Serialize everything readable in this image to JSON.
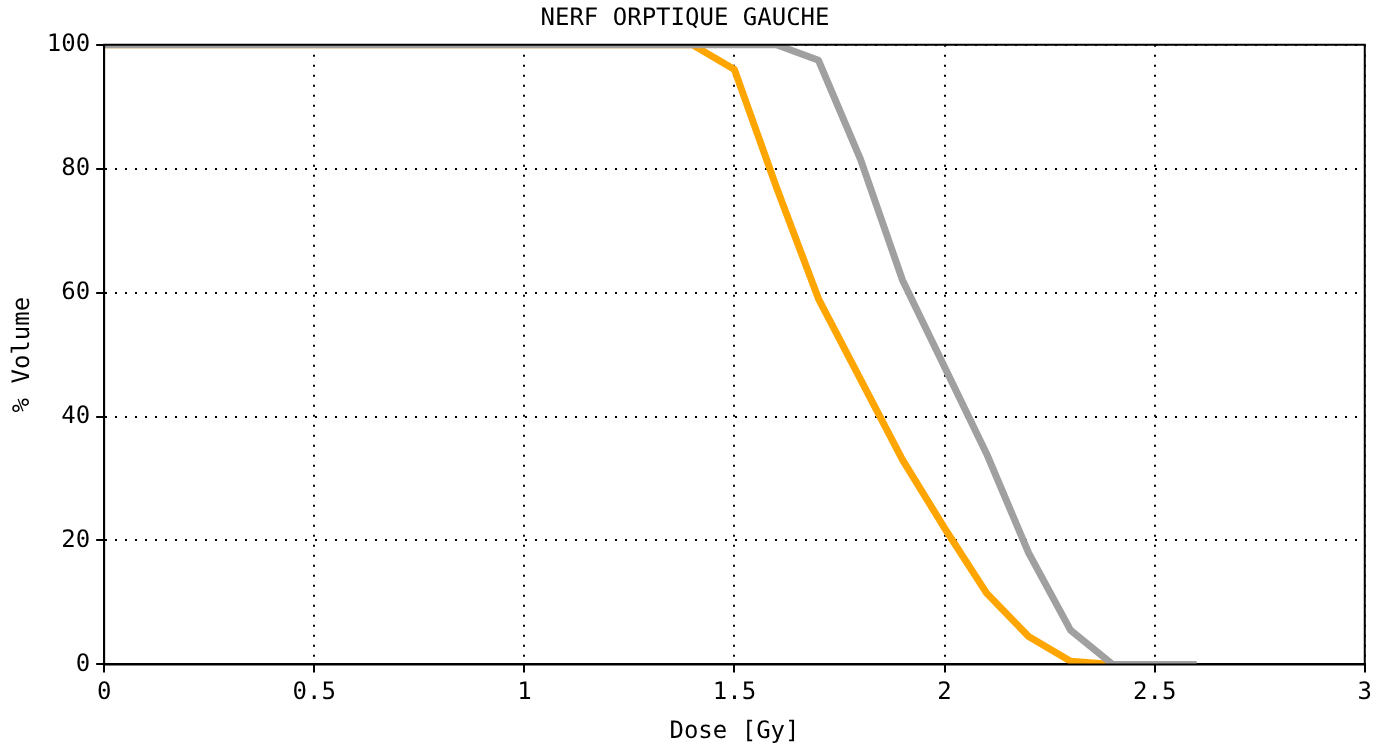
{
  "chart_data": {
    "type": "line",
    "title": "NERF ORPTIQUE GAUCHE",
    "xlabel": "Dose [Gy]",
    "ylabel": "% Volume",
    "xlim": [
      0,
      3
    ],
    "xticks": [
      0,
      0.5,
      1,
      1.5,
      2,
      2.5,
      3
    ],
    "ylim": [
      0,
      100
    ],
    "yticks": [
      0,
      20,
      40,
      60,
      80,
      100
    ],
    "grid": true,
    "marker": "none",
    "line_style": "solid",
    "series": [
      {
        "color": "#a0a0a0",
        "x": [
          0,
          1.6,
          1.7,
          1.8,
          1.9,
          2.0,
          2.1,
          2.2,
          2.3,
          2.4,
          2.5,
          2.6
        ],
        "values": [
          100,
          100,
          97.5,
          81.5,
          62,
          48,
          34,
          18,
          5.5,
          0,
          0,
          0
        ]
      },
      {
        "color": "#ffa500",
        "x": [
          0,
          1.4,
          1.5,
          1.6,
          1.7,
          1.8,
          1.9,
          2.0,
          2.1,
          2.2,
          2.3,
          2.4
        ],
        "values": [
          100,
          100,
          96,
          77,
          59,
          46,
          33,
          22,
          11.5,
          4.5,
          0.5,
          0
        ]
      }
    ]
  }
}
